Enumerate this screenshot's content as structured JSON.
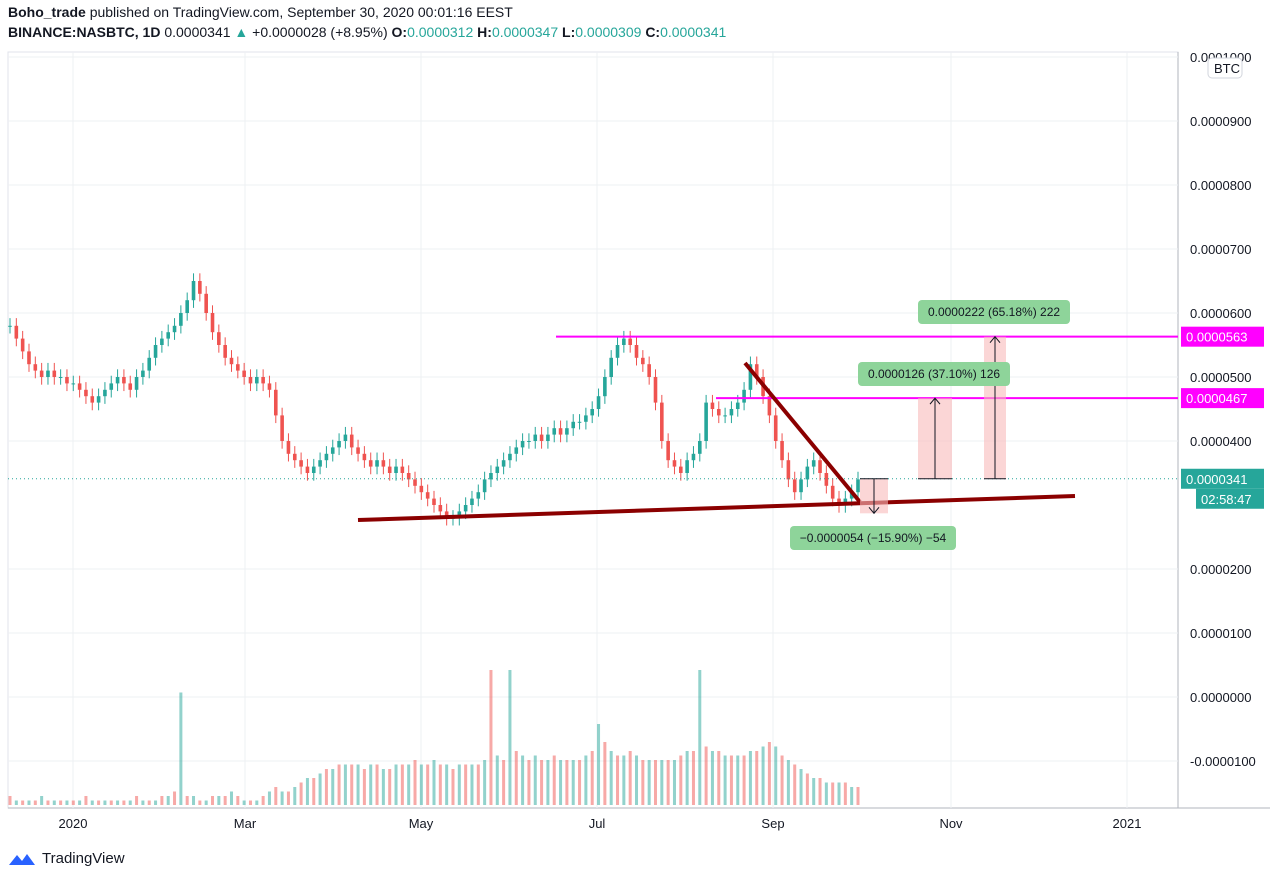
{
  "header": {
    "publisher": "Boho_trade",
    "published_text": "published on TradingView.com, September 30, 2020 00:01:16 EEST",
    "symbol": "BINANCE:NASBTC, 1D",
    "last": "0.0000341",
    "change": "+0.0000028 (+8.95%)",
    "o_label": "O:",
    "o_value": "0.0000312",
    "h_label": "H:",
    "h_value": "0.0000347",
    "l_label": "L:",
    "l_value": "0.0000309",
    "c_label": "C:",
    "c_value": "0.0000341"
  },
  "footer": {
    "brand": "TradingView"
  },
  "chart_data": {
    "type": "candlestick",
    "currency_label": "BTC",
    "y_ticks": [
      "0.0001000",
      "0.0000900",
      "0.0000800",
      "0.0000700",
      "0.0000600",
      "0.0000500",
      "0.0000400",
      "0.0000200",
      "0.0000100",
      "0.0000000",
      "-0.0000100"
    ],
    "y_tick_values": [
      0.0001,
      9e-05,
      8e-05,
      7e-05,
      6e-05,
      5e-05,
      4e-05,
      2e-05,
      1e-05,
      0.0,
      -1e-05
    ],
    "x_ticks": [
      "2020",
      "Mar",
      "May",
      "Jul",
      "Sep",
      "Nov",
      "2021"
    ],
    "price_labels": [
      {
        "text": "0.0000563",
        "value": 5.63e-05,
        "color": "#ff00ff"
      },
      {
        "text": "0.0000467",
        "value": 4.67e-05,
        "color": "#ff00ff"
      },
      {
        "text": "0.0000341",
        "value": 3.41e-05,
        "color": "#26a69a"
      }
    ],
    "countdown": "02:58:47",
    "horizontal_levels": [
      5.63e-05,
      4.67e-05
    ],
    "measurements": [
      {
        "text": "0.0000222 (65.18%) 222",
        "from": 3.41e-05,
        "to": 5.63e-05
      },
      {
        "text": "0.0000126 (37.10%) 126",
        "from": 3.41e-05,
        "to": 4.67e-05
      },
      {
        "text": "−0.0000054 (−15.90%) −54",
        "from": 3.41e-05,
        "to": 2.87e-05
      }
    ],
    "close_series": [
      58,
      56,
      54,
      52,
      51,
      50,
      51,
      50,
      50,
      49,
      49,
      48,
      47,
      46,
      47,
      48,
      49,
      50,
      49,
      48,
      50,
      51,
      53,
      55,
      56,
      57,
      58,
      60,
      62,
      65,
      63,
      60,
      57,
      55,
      53,
      52,
      51,
      50,
      49,
      50,
      49,
      48,
      44,
      40,
      38,
      37,
      36,
      35,
      36,
      37,
      38,
      39,
      40,
      41,
      39,
      38,
      37,
      36,
      37,
      36,
      35,
      36,
      35,
      34,
      33,
      32,
      31,
      30,
      29,
      28,
      28,
      29,
      30,
      31,
      32,
      34,
      35,
      36,
      37,
      38,
      39,
      40,
      40,
      41,
      40,
      41,
      42,
      41,
      42,
      43,
      43,
      44,
      45,
      47,
      50,
      53,
      55,
      56,
      55,
      53,
      52,
      50,
      46,
      40,
      37,
      36,
      35,
      37,
      38,
      40,
      46,
      45,
      44,
      44,
      45,
      46,
      48,
      52,
      50,
      47,
      44,
      40,
      37,
      34,
      32,
      34,
      36,
      37,
      35,
      33,
      31,
      30,
      31,
      32,
      34
    ],
    "volume_series": [
      2,
      1,
      1,
      1,
      1,
      2,
      1,
      1,
      1,
      1,
      1,
      1,
      2,
      1,
      1,
      1,
      1,
      1,
      1,
      1,
      2,
      1,
      1,
      1,
      2,
      2,
      3,
      25,
      2,
      2,
      1,
      1,
      2,
      2,
      2,
      3,
      2,
      1,
      1,
      1,
      2,
      3,
      4,
      3,
      3,
      4,
      5,
      6,
      6,
      7,
      8,
      8,
      9,
      9,
      9,
      9,
      8,
      9,
      9,
      8,
      8,
      9,
      9,
      9,
      10,
      9,
      9,
      10,
      9,
      9,
      8,
      9,
      9,
      9,
      9,
      10,
      30,
      11,
      10,
      30,
      12,
      11,
      10,
      11,
      10,
      10,
      11,
      10,
      10,
      10,
      10,
      11,
      12,
      18,
      14,
      12,
      11,
      11,
      12,
      11,
      10,
      10,
      10,
      10,
      10,
      10,
      11,
      12,
      12,
      30,
      13,
      12,
      12,
      11,
      11,
      11,
      11,
      12,
      12,
      13,
      14,
      13,
      11,
      10,
      9,
      8,
      7,
      6,
      6,
      5,
      5,
      5,
      5,
      4,
      4
    ]
  }
}
